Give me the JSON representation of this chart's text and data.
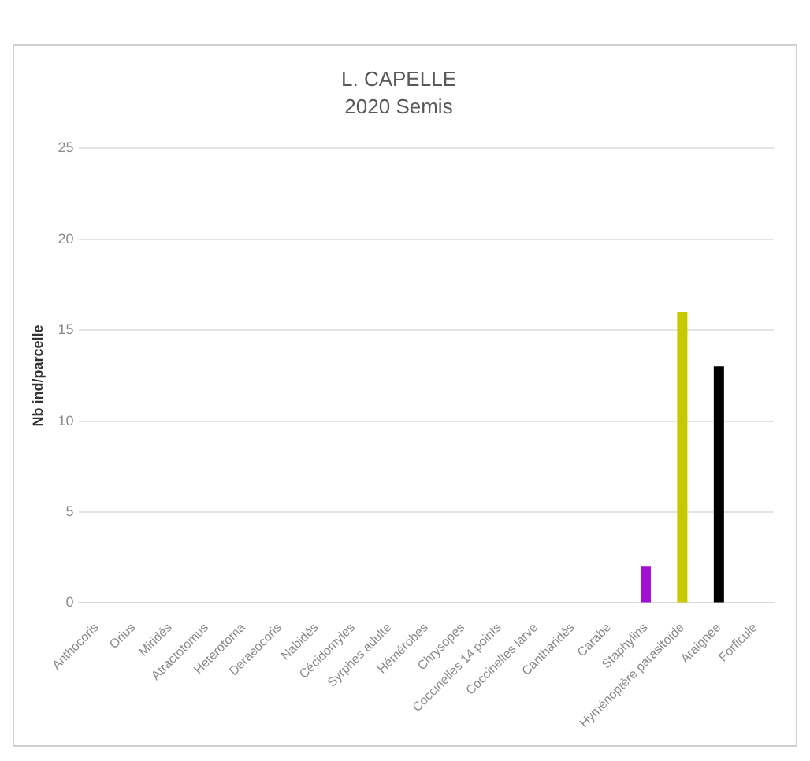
{
  "chart_data": {
    "type": "bar",
    "title": "L. CAPELLE",
    "subtitle": "2020 Semis",
    "ylabel": "Nb ind/parcelle",
    "categories": [
      "Anthocoris",
      "Orius",
      "Miridés",
      "Atractotomus",
      "Heterotoma",
      "Deraeocoris",
      "Nabidés",
      "Cécidomyies",
      "Syrphes adulte",
      "Hémérobes",
      "Chrysopes",
      "Coccinelles 14 points",
      "Coccinelles larve",
      "Cantharidés",
      "Carabe",
      "Staphylins",
      "Hyménoptère parasitoïde",
      "Araignée",
      "Forficule"
    ],
    "values": [
      0,
      0,
      0,
      0,
      0,
      0,
      0,
      0,
      0,
      0,
      0,
      0,
      0,
      0,
      0,
      2,
      16,
      13,
      0
    ],
    "colors": [
      "#888888",
      "#888888",
      "#888888",
      "#888888",
      "#888888",
      "#888888",
      "#888888",
      "#888888",
      "#888888",
      "#888888",
      "#888888",
      "#888888",
      "#888888",
      "#888888",
      "#888888",
      "#a010d0",
      "#c8c800",
      "#000000",
      "#888888"
    ],
    "ylim": [
      0,
      25
    ],
    "yticks": [
      0,
      5,
      10,
      15,
      20,
      25
    ],
    "grid": "y",
    "legend": false
  }
}
